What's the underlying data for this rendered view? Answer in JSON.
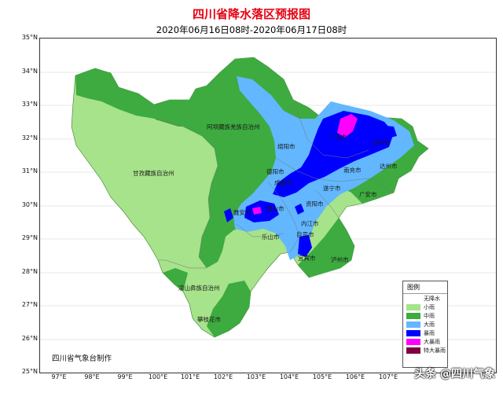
{
  "title": "四川省降水落区预报图",
  "subtitle": "2020年06月16日08时-2020年06月17日08时",
  "credit": "四川省气象台制作",
  "watermark": "头条 @四川气象",
  "lat_labels": [
    "35°N",
    "34°N",
    "33°N",
    "32°N",
    "31°N",
    "30°N",
    "29°N",
    "28°N",
    "27°N",
    "26°N",
    "25°N"
  ],
  "lon_labels": [
    "97°E",
    "98°E",
    "99°E",
    "100°E",
    "101°E",
    "102°E",
    "103°E",
    "104°E",
    "105°E",
    "106°E",
    "107°E"
  ],
  "cities": {
    "aba": "阿坝藏族羌族自治州",
    "ganzi": "甘孜藏族自治州",
    "liangshan": "凉山彝族自治州",
    "panzhihua": "攀枝花市",
    "deyang": "德阳市",
    "chengdu": "成都市",
    "mianyang": "绵阳市",
    "guangyuan": "广元市",
    "bazhong": "巴中市",
    "dazhou": "达州市",
    "nanchong": "南充市",
    "suining": "遂宁市",
    "guangan": "广安市",
    "ziyang": "资阳市",
    "meishan": "眉山市",
    "yaan": "雅安市",
    "leshan": "乐山市",
    "neijiang": "内江市",
    "zigong": "自贡市",
    "yibin": "宜宾市",
    "luzhou": "泸州市"
  },
  "legend": {
    "title": "图例",
    "items": [
      {
        "label": "无降水",
        "color": "#ffffff"
      },
      {
        "label": "小雨",
        "color": "#a6e38a"
      },
      {
        "label": "中雨",
        "color": "#3dab3f"
      },
      {
        "label": "大雨",
        "color": "#62b7ff"
      },
      {
        "label": "暴雨",
        "color": "#0000ff"
      },
      {
        "label": "大暴雨",
        "color": "#ff00ff"
      },
      {
        "label": "特大暴雨",
        "color": "#7d0041"
      }
    ]
  },
  "colors": {
    "light_rain": "#a6e38a",
    "moderate_rain": "#3dab3f",
    "heavy_rain": "#62b7ff",
    "rainstorm": "#0000ff",
    "heavy_rainstorm": "#ff00ff",
    "title": "#e60012"
  }
}
